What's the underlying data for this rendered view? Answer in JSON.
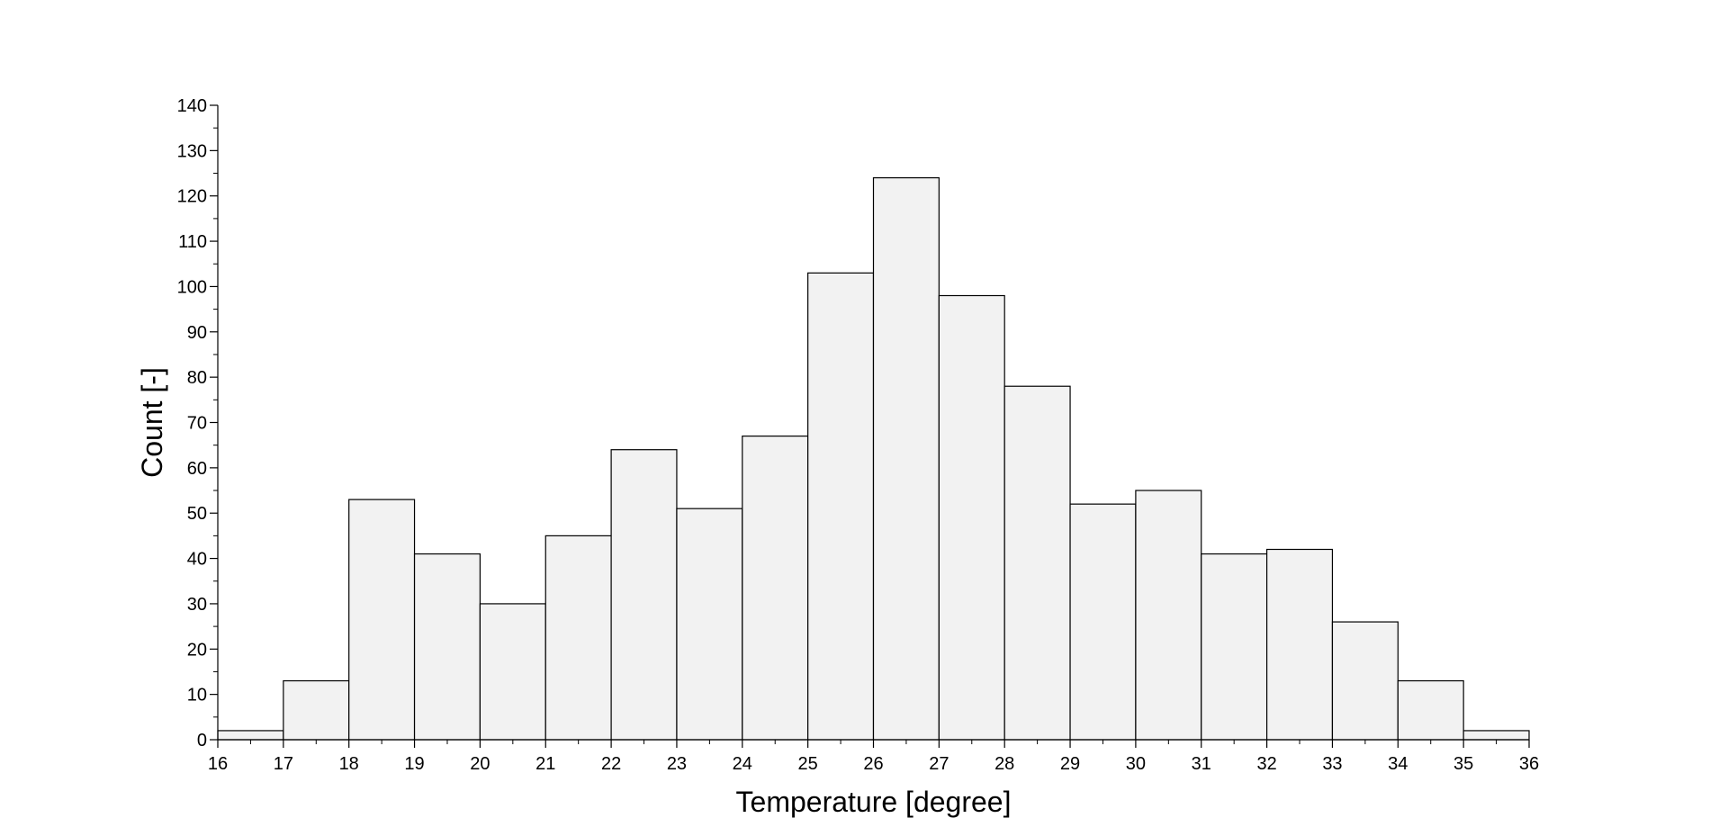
{
  "chart_data": {
    "type": "bar",
    "bin_edges": [
      16,
      17,
      18,
      19,
      20,
      21,
      22,
      23,
      24,
      25,
      26,
      27,
      28,
      29,
      30,
      31,
      32,
      33,
      34,
      35,
      36
    ],
    "values": [
      2,
      13,
      53,
      41,
      30,
      45,
      64,
      51,
      67,
      103,
      124,
      98,
      78,
      52,
      55,
      41,
      42,
      26,
      13,
      2
    ],
    "title": "",
    "xlabel": "Temperature [degree]",
    "ylabel": "Count [-]",
    "xlim": [
      16,
      36
    ],
    "ylim": [
      0,
      140
    ],
    "xticks": [
      16,
      17,
      18,
      19,
      20,
      21,
      22,
      23,
      24,
      25,
      26,
      27,
      28,
      29,
      30,
      31,
      32,
      33,
      34,
      35,
      36
    ],
    "yticks": [
      0,
      10,
      20,
      30,
      40,
      50,
      60,
      70,
      80,
      90,
      100,
      110,
      120,
      130,
      140
    ],
    "grid": false,
    "legend": "none",
    "bar_fill": "#f2f2f2",
    "bar_stroke": "#000000"
  }
}
